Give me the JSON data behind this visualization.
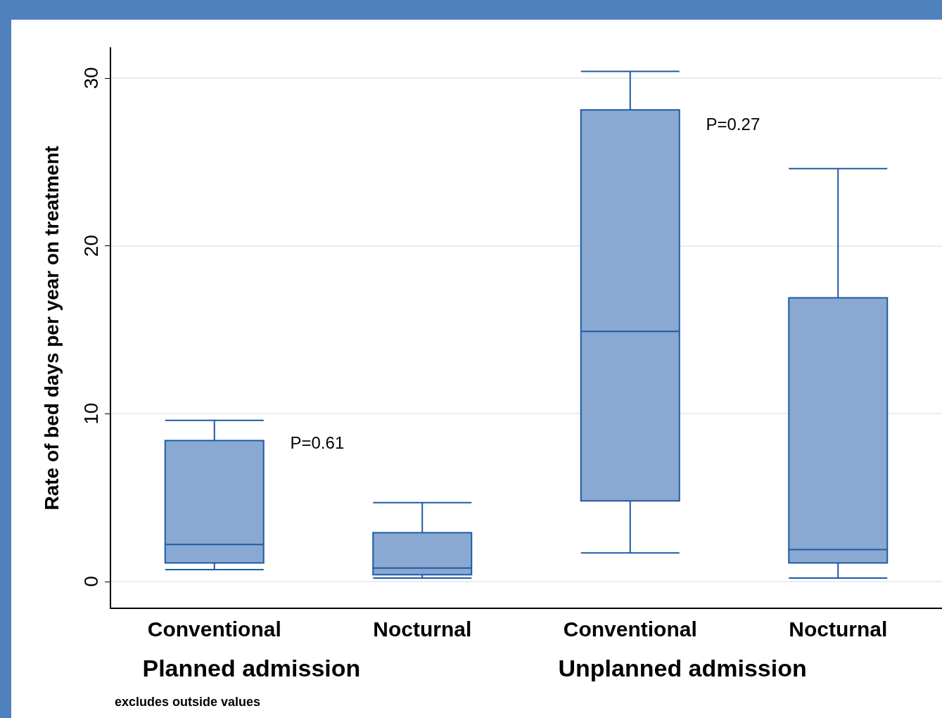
{
  "chart_data": {
    "type": "box",
    "ylabel": "Rate of bed days per year on treatment",
    "categories": [
      "Conventional",
      "Nocturnal",
      "Conventional",
      "Nocturnal"
    ],
    "boxes": [
      {
        "low": 0.7,
        "q1": 1.1,
        "median": 2.2,
        "q3": 8.4,
        "high": 9.6
      },
      {
        "low": 0.2,
        "q1": 0.4,
        "median": 0.8,
        "q3": 2.9,
        "high": 4.7
      },
      {
        "low": 1.7,
        "q1": 4.8,
        "median": 14.9,
        "q3": 28.1,
        "high": 30.4
      },
      {
        "low": 0.2,
        "q1": 1.1,
        "median": 1.9,
        "q3": 16.9,
        "high": 24.6
      }
    ],
    "color": "#89a9d2",
    "ylim": [
      -1.6,
      31.8
    ],
    "yticks": [
      0,
      10,
      20,
      30
    ],
    "grid": "y",
    "annotations": [
      "P=0.61",
      "P=0.27",
      "Planned admission",
      "Unplanned admission",
      "excludes outside values"
    ]
  }
}
